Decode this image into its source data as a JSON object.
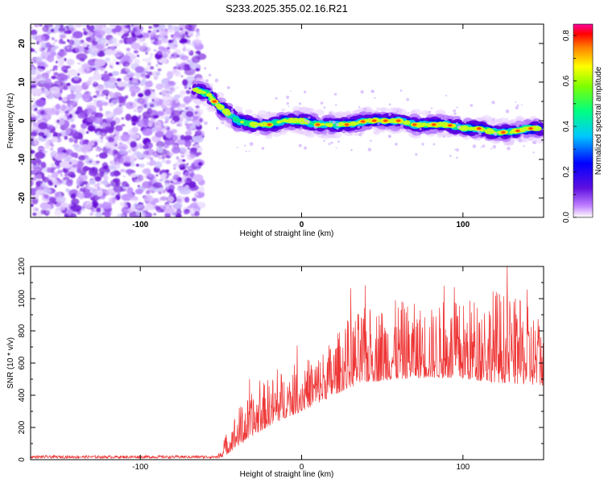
{
  "chart_data": [
    {
      "type": "heatmap",
      "title": "S233.2025.355.02.16.R21",
      "xlabel": "Height of straight line (km)",
      "ylabel": "Frequency (Hz)",
      "xlim": [
        -168,
        150
      ],
      "ylim": [
        -25,
        25
      ],
      "xticks": [
        -100,
        0,
        100
      ],
      "yticks": [
        -20,
        -10,
        0,
        10,
        20
      ],
      "noise_region": [
        -168,
        -62
      ],
      "ridge": {
        "x": [
          -66,
          -58,
          -52,
          -46,
          -40,
          -30,
          -20,
          -10,
          0,
          10,
          20,
          30,
          40,
          50,
          60,
          70,
          80,
          90,
          100,
          110,
          120,
          130,
          140,
          148
        ],
        "y": [
          8,
          7,
          4,
          2,
          0,
          -1,
          -1,
          0,
          0,
          -1,
          -1,
          -1,
          0,
          0,
          0,
          -1,
          -1,
          -1,
          -2,
          -2,
          -3,
          -3,
          -2,
          -2
        ]
      },
      "colorbar": {
        "label": "Normalized spectral amplitude",
        "ticks": [
          "0.0",
          "0.2",
          "0.4",
          "0.6",
          "0.8"
        ],
        "range": [
          0,
          0.85
        ]
      }
    },
    {
      "type": "line",
      "xlabel": "Height of straight line (km)",
      "ylabel": "SNR (10 * v/v)",
      "xlim": [
        -168,
        150
      ],
      "ylim": [
        0,
        1200
      ],
      "xticks": [
        -100,
        0,
        100
      ],
      "yticks": [
        0,
        200,
        400,
        600,
        800,
        1000,
        1200
      ],
      "series_color": "#ee3333",
      "envelope": {
        "x": [
          -168,
          -52,
          -48,
          -40,
          -30,
          -20,
          -10,
          0,
          10,
          20,
          30,
          40,
          60,
          80,
          100,
          120,
          150
        ],
        "base": [
          10,
          10,
          20,
          80,
          150,
          210,
          260,
          300,
          350,
          400,
          450,
          480,
          500,
          510,
          500,
          480,
          460
        ],
        "top": [
          28,
          28,
          150,
          350,
          450,
          550,
          600,
          650,
          700,
          800,
          950,
          1000,
          1050,
          1000,
          1050,
          1150,
          950
        ]
      }
    }
  ]
}
